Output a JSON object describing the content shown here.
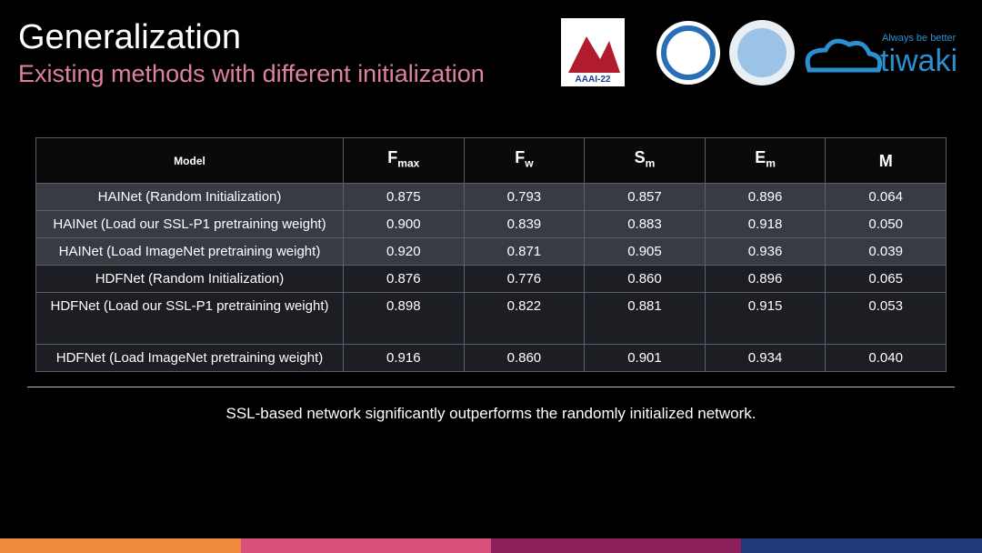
{
  "header": {
    "title": "Generalization",
    "subtitle": "Existing methods with different initialization",
    "logos": {
      "conference": "AAAI-22",
      "brand_tagline": "Always be better",
      "brand": "tiwaki"
    }
  },
  "table": {
    "columns": [
      {
        "main": "Model"
      },
      {
        "main": "F",
        "sub": "max"
      },
      {
        "main": "F",
        "sub": "w"
      },
      {
        "main": "S",
        "sub": "m"
      },
      {
        "main": "E",
        "sub": "m"
      },
      {
        "main": "M"
      }
    ],
    "rows": [
      [
        "HAINet (Random Initialization)",
        "0.875",
        "0.793",
        "0.857",
        "0.896",
        "0.064"
      ],
      [
        "HAINet (Load our SSL-P1 pretraining weight)",
        "0.900",
        "0.839",
        "0.883",
        "0.918",
        "0.050"
      ],
      [
        "HAINet (Load ImageNet pretraining weight)",
        "0.920",
        "0.871",
        "0.905",
        "0.936",
        "0.039"
      ],
      [
        "HDFNet (Random Initialization)",
        "0.876",
        "0.776",
        "0.860",
        "0.896",
        "0.065"
      ],
      [
        "HDFNet (Load our SSL-P1 pretraining weight)",
        "0.898",
        "0.822",
        "0.881",
        "0.915",
        "0.053"
      ],
      [
        "HDFNet (Load ImageNet pretraining weight)",
        "0.916",
        "0.860",
        "0.901",
        "0.934",
        "0.040"
      ]
    ]
  },
  "footer": {
    "note": "SSL-based network significantly outperforms the randomly initialized network."
  }
}
